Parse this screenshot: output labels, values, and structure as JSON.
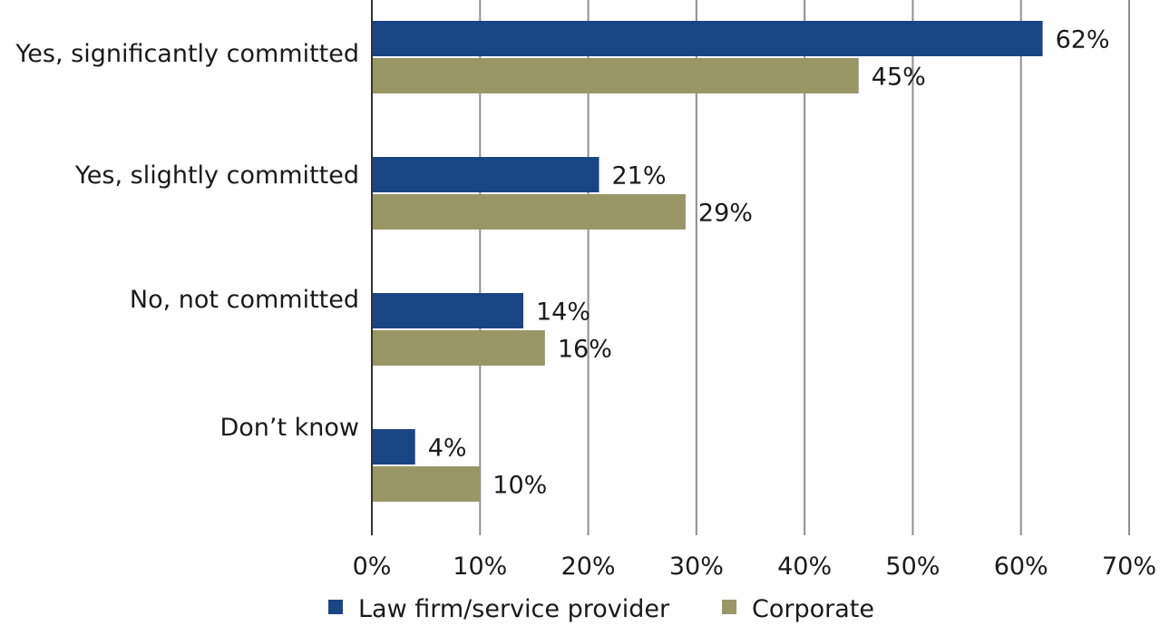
{
  "chart_data": {
    "type": "bar",
    "orientation": "horizontal",
    "categories": [
      "Yes, significantly committed",
      "Yes, slightly committed",
      "No, not committed",
      "Don’t know"
    ],
    "series": [
      {
        "name": "Law firm/service provider",
        "values": [
          62,
          21,
          14,
          4
        ],
        "color": "#1a4585"
      },
      {
        "name": "Corporate",
        "values": [
          45,
          29,
          16,
          10
        ],
        "color": "#9a9767"
      }
    ],
    "value_labels": [
      [
        "62%",
        "21%",
        "14%",
        "4%"
      ],
      [
        "45%",
        "29%",
        "16%",
        "10%"
      ]
    ],
    "xticks": [
      "0%",
      "10%",
      "20%",
      "30%",
      "40%",
      "50%",
      "60%",
      "70%"
    ],
    "xlim": [
      0,
      70
    ],
    "grid": true,
    "legend_position": "bottom",
    "title": "",
    "xlabel": "",
    "ylabel": ""
  }
}
